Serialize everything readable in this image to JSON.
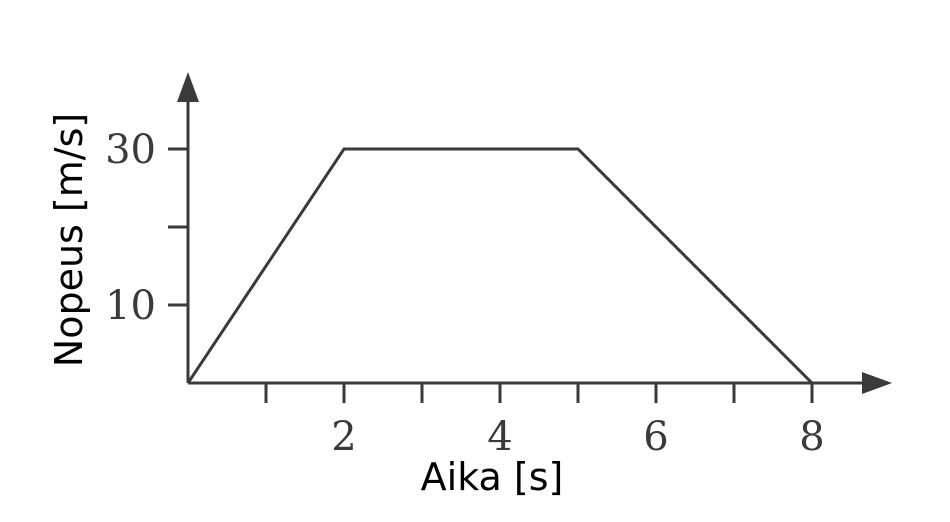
{
  "chart_data": {
    "type": "line",
    "xlabel": "Aika [s]",
    "ylabel": "Nopeus [m/s]",
    "xlim": [
      0,
      8
    ],
    "ylim": [
      0,
      30
    ],
    "x_ticks": [
      1,
      2,
      3,
      4,
      5,
      6,
      7,
      8
    ],
    "x_tick_labels": [
      {
        "value": 2,
        "label": "2"
      },
      {
        "value": 4,
        "label": "4"
      },
      {
        "value": 6,
        "label": "6"
      },
      {
        "value": 8,
        "label": "8"
      }
    ],
    "y_ticks": [
      10,
      20,
      30
    ],
    "y_tick_labels": [
      {
        "value": 10,
        "label": "10"
      },
      {
        "value": 30,
        "label": "30"
      }
    ],
    "grid": false,
    "series": [
      {
        "x": [
          0,
          2,
          5,
          8
        ],
        "y": [
          0,
          30,
          30,
          0
        ]
      }
    ]
  }
}
